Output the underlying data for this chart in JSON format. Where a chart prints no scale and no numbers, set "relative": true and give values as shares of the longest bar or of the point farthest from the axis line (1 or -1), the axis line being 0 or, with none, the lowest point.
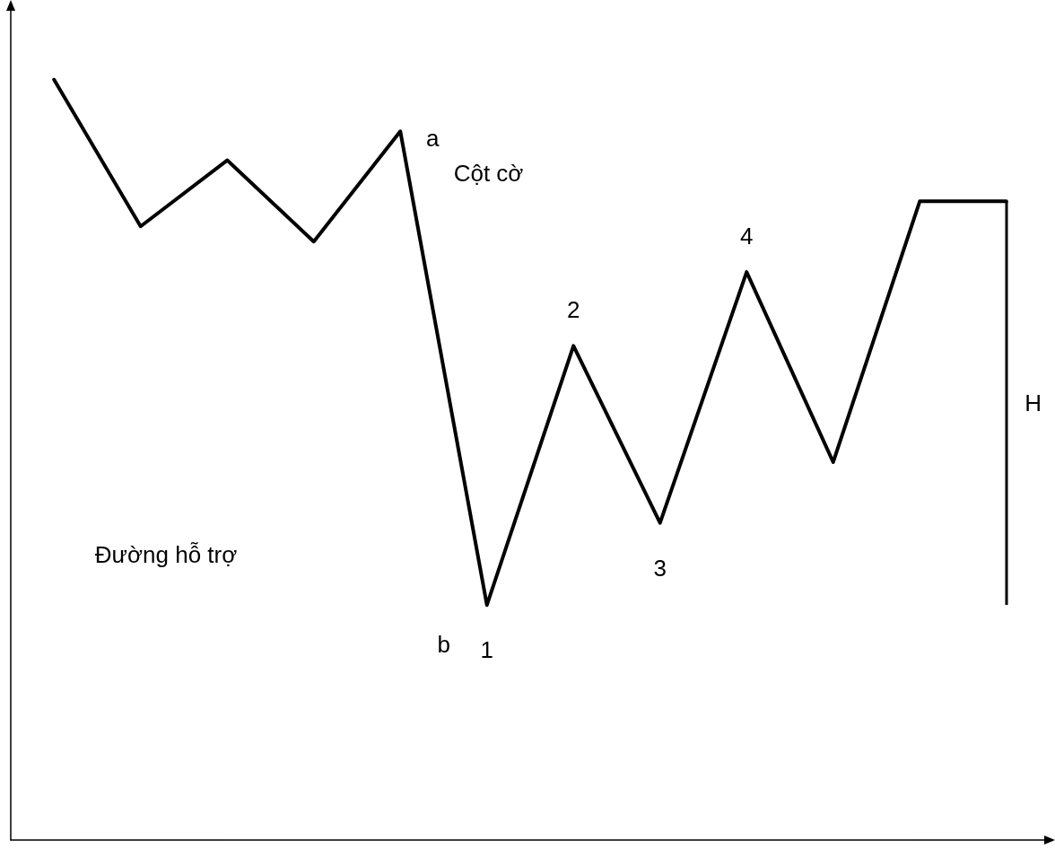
{
  "chart_data": {
    "type": "line",
    "relative": true,
    "marker": "none",
    "line_style": "solid",
    "categories": [
      null,
      null,
      null,
      null,
      null,
      null,
      null,
      null,
      null,
      null,
      null,
      null
    ],
    "series": [
      {
        "color": "#000000",
        "values": [
          1.0,
          0.807,
          0.894,
          0.787,
          0.932,
          0.309,
          0.65,
          0.417,
          0.747,
          0.497,
          0.84,
          0.84
        ]
      }
    ],
    "annotations": [
      "a",
      "b",
      {
        "text": "1",
        "y": 0.309
      },
      {
        "text": "2",
        "y": 0.65
      },
      {
        "text": "3",
        "y": 0.417
      },
      {
        "text": "4",
        "y": 0.747
      },
      "Cột cờ",
      "Đường hỗ trợ",
      "H"
    ]
  }
}
